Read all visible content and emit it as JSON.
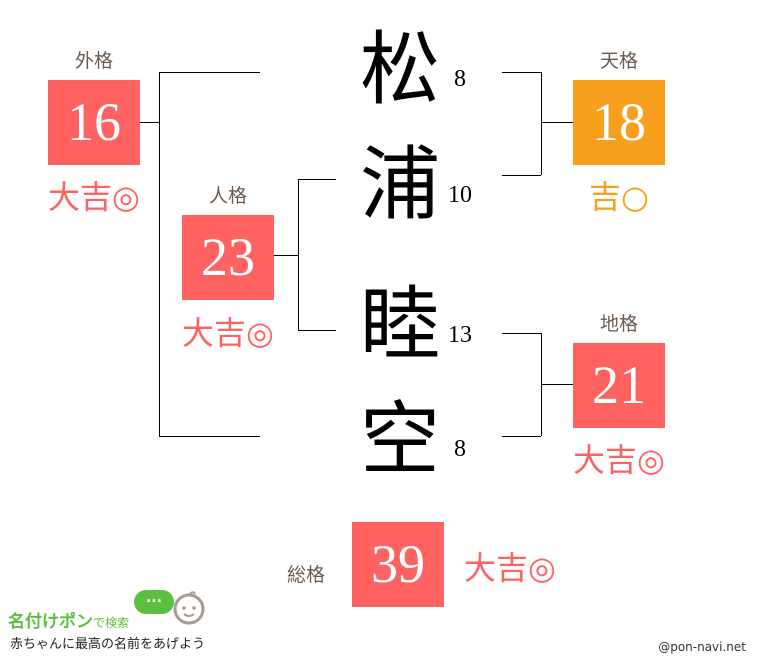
{
  "name": [
    {
      "char": "松",
      "strokes": "8"
    },
    {
      "char": "浦",
      "strokes": "10"
    },
    {
      "char": "睦",
      "strokes": "13"
    },
    {
      "char": "空",
      "strokes": "8"
    }
  ],
  "gaikaku": {
    "label": "外格",
    "value": "16",
    "fortune": "大吉◎",
    "color": "#ff6361"
  },
  "tenkaku": {
    "label": "天格",
    "value": "18",
    "fortune": "吉○",
    "color": "#f8a01e"
  },
  "jinkaku": {
    "label": "人格",
    "value": "23",
    "fortune": "大吉◎",
    "color": "#ff6361"
  },
  "chikaku": {
    "label": "地格",
    "value": "21",
    "fortune": "大吉◎",
    "color": "#ff6361"
  },
  "soukaku": {
    "label": "総格",
    "value": "39",
    "fortune": "大吉◎",
    "color": "#ff6361"
  },
  "logo": {
    "title": "名付けポン",
    "suffix": "で検索",
    "tagline": "赤ちゃんに最高の名前をあげよう",
    "bubble": "..."
  },
  "credit": "@pon-navi.net"
}
